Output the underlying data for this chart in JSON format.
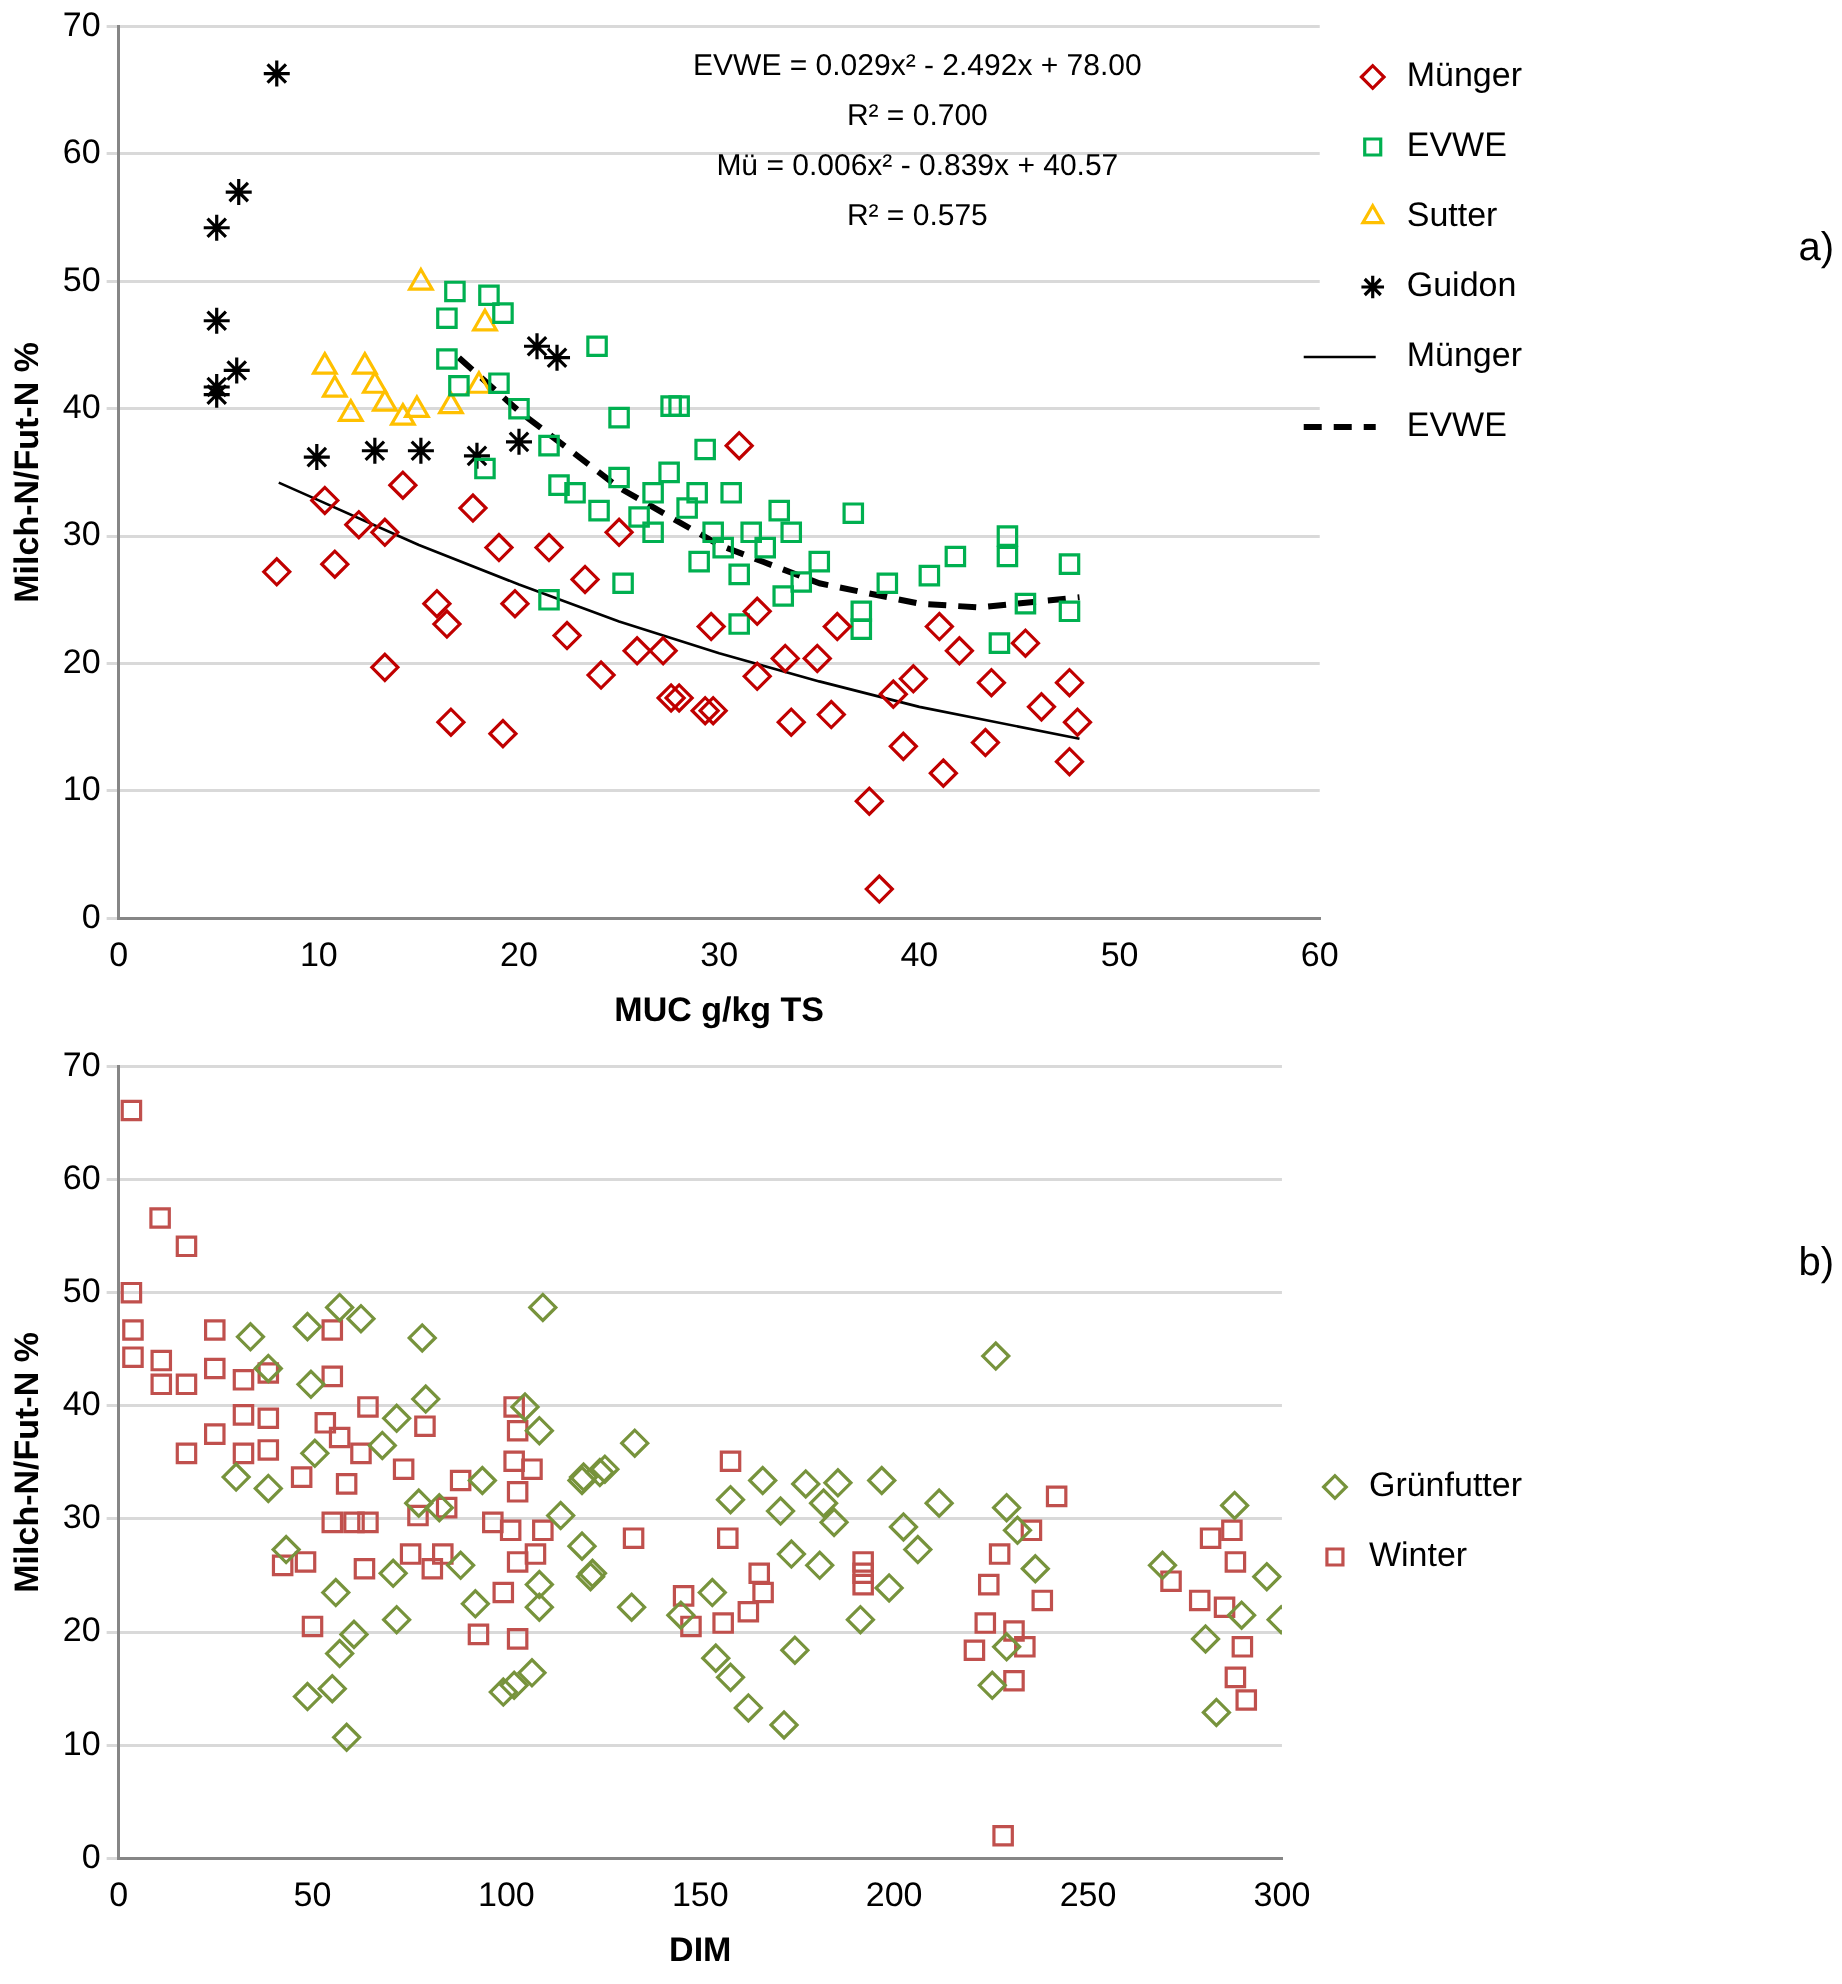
{
  "chart_data": [
    {
      "type": "scatter",
      "xlabel": "MUC g/kg TS",
      "ylabel": "Milch-N/Fut-N %",
      "xlim": [
        0,
        60
      ],
      "xticks": [
        0,
        10,
        20,
        30,
        40,
        50,
        60
      ],
      "ylim": [
        0,
        70
      ],
      "yticks": [
        0,
        10,
        20,
        30,
        40,
        50,
        60,
        70
      ],
      "grid": "y",
      "legend": "right",
      "annotations": [
        "EVWE = 0.029x² - 2.492x + 78.00",
        "R² = 0.700",
        "Mü = 0.006x² - 0.839x + 40.57",
        "R² = 0.575",
        "a)"
      ],
      "series": [
        {
          "name": "Münger",
          "marker": "diamond",
          "color": "#c00000",
          "x": [
            7.9,
            10.8,
            13.3,
            16.6,
            19.2,
            15.9,
            16.4,
            19.0,
            12.0,
            14.2,
            17.7,
            21.5,
            22.4,
            24.1,
            27.6,
            29.7,
            25.9,
            31.0,
            10.3,
            13.3,
            19.8,
            23.3,
            25.0,
            27.2,
            28.0,
            29.3,
            33.6,
            35.6,
            37.5,
            38.0,
            39.2,
            41.2,
            41.0,
            42.0,
            45.3,
            43.6,
            43.3,
            47.5,
            47.5,
            47.9,
            46.1,
            39.7,
            38.7,
            34.9,
            33.3,
            31.9,
            29.6,
            35.9,
            31.9
          ],
          "values": [
            27.2,
            27.8,
            19.7,
            15.4,
            14.5,
            24.7,
            23.1,
            29.1,
            30.9,
            34.0,
            32.2,
            29.1,
            22.2,
            19.1,
            17.3,
            16.3,
            21.0,
            37.1,
            32.8,
            30.3,
            24.7,
            26.6,
            30.3,
            21.0,
            17.3,
            16.3,
            15.4,
            16.0,
            9.2,
            2.3,
            13.5,
            11.4,
            22.9,
            21.0,
            21.6,
            18.5,
            13.8,
            18.5,
            12.3,
            15.4,
            16.6,
            18.8,
            17.6,
            20.4,
            20.4,
            24.1,
            22.9,
            22.9,
            19.0
          ]
        },
        {
          "name": "EVWE",
          "marker": "square",
          "color": "#00b050",
          "x": [
            16.8,
            18.5,
            16.4,
            19.2,
            23.9,
            27.6,
            25.0,
            21.5,
            16.4,
            17.0,
            18.3,
            22.8,
            25.0,
            26.7,
            28.9,
            30.2,
            21.5,
            25.2,
            31.0,
            28.0,
            29.3,
            30.6,
            36.7,
            44.4,
            44.4,
            47.5,
            47.5,
            45.3,
            41.8,
            40.5,
            44.0,
            38.4,
            37.1,
            37.1,
            33.2,
            34.1,
            33.6,
            31.6,
            26.7,
            28.4,
            29.7,
            32.3,
            26.0,
            27.5,
            24.0,
            29.0,
            31.0,
            35.0,
            33.0,
            22.0,
            19.0,
            20.0
          ],
          "values": [
            49.2,
            48.9,
            47.1,
            47.5,
            44.9,
            40.2,
            39.3,
            37.1,
            43.9,
            41.8,
            35.3,
            33.4,
            34.6,
            30.3,
            33.4,
            29.1,
            25.0,
            26.3,
            23.1,
            40.2,
            36.8,
            33.4,
            31.8,
            30.0,
            28.4,
            27.8,
            24.1,
            24.7,
            28.4,
            26.9,
            21.6,
            26.3,
            24.1,
            22.7,
            25.3,
            26.4,
            30.3,
            30.3,
            33.4,
            32.2,
            30.3,
            29.1,
            31.5,
            35.0,
            32.0,
            28.0,
            27.0,
            28.0,
            32.0,
            34.0,
            42.0,
            40.0
          ]
        },
        {
          "name": "Sutter",
          "marker": "triangle",
          "color": "#ffc000",
          "x": [
            15.1,
            18.3,
            10.3,
            12.3,
            10.8,
            12.8,
            11.6,
            14.2,
            16.6,
            18.0,
            14.9,
            13.3
          ],
          "values": [
            49.9,
            46.7,
            43.3,
            43.3,
            41.5,
            41.8,
            39.6,
            39.3,
            40.2,
            41.8,
            39.9,
            40.4
          ]
        },
        {
          "name": "Guidon",
          "marker": "cross",
          "color": "#000000",
          "x": [
            7.9,
            6.0,
            4.9,
            4.9,
            5.9,
            4.9,
            4.9,
            9.9,
            12.8,
            15.1,
            17.9,
            20.0,
            20.9,
            21.9
          ],
          "values": [
            66.3,
            57.0,
            54.2,
            46.9,
            43.0,
            41.7,
            41.1,
            36.2,
            36.7,
            36.7,
            36.3,
            37.4,
            44.9,
            44.0
          ]
        },
        {
          "name": "Münger",
          "type": "line",
          "marker": "none",
          "line_style": "solid",
          "color": "#000000",
          "x": [
            8,
            10,
            15,
            20,
            25,
            30,
            35,
            40,
            48
          ],
          "values": [
            34.2,
            32.8,
            29.3,
            26.2,
            23.3,
            20.8,
            18.6,
            16.6,
            14.1
          ]
        },
        {
          "name": "EVWE",
          "type": "line",
          "marker": "none",
          "line_style": "dashed",
          "color": "#000000",
          "x": [
            17,
            20,
            25,
            30,
            35,
            40,
            43,
            48
          ],
          "values": [
            44.0,
            39.8,
            33.8,
            29.3,
            26.3,
            24.7,
            24.4,
            25.2
          ]
        }
      ]
    },
    {
      "type": "scatter",
      "xlabel": "DIM",
      "ylabel": "Milch-N/Fut-N %",
      "xlim": [
        0,
        300
      ],
      "xticks": [
        0,
        50,
        100,
        150,
        200,
        250,
        300
      ],
      "ylim": [
        0,
        70
      ],
      "yticks": [
        0,
        10,
        20,
        30,
        40,
        50,
        60,
        70
      ],
      "grid": "y",
      "legend": "right",
      "annotations": [
        "b)"
      ],
      "series": [
        {
          "name": "Grünfutter",
          "marker": "diamond",
          "color": "#77933c",
          "x": [
            34,
            38.6,
            38.6,
            30.3,
            43.2,
            48.7,
            49.6,
            50.6,
            48.7,
            55.1,
            58.8,
            57,
            62.5,
            56,
            57,
            60.7,
            68,
            71.7,
            71.7,
            70.8,
            78.3,
            79.2,
            77.4,
            82.7,
            88.2,
            93.8,
            92,
            99.2,
            102,
            106.6,
            109.4,
            104.8,
            108.5,
            108.5,
            108.5,
            114.0,
            119.5,
            119.5,
            122.2,
            124.1,
            133.1,
            132.3,
            119.9,
            125.4,
            121.7,
            145,
            157.8,
            166.1,
            153.1,
            154,
            157.8,
            162.4,
            171.6,
            174.4,
            170.7,
            173.5,
            177.2,
            181.8,
            185.5,
            184.5,
            180.8,
            191.3,
            196.8,
            198.7,
            202.4,
            206.1,
            211.6,
            226.2,
            229.0,
            231.8,
            236.4,
            225.3,
            229.0,
            269.2,
            280.3,
            283.1,
            287.8,
            296.1,
            299.8,
            289.6
          ],
          "values": [
            46.1,
            43.3,
            32.7,
            33.7,
            27.3,
            47.0,
            41.9,
            35.8,
            14.3,
            15.0,
            10.7,
            48.7,
            47.7,
            23.5,
            18.1,
            19.8,
            36.5,
            38.9,
            21.1,
            25.2,
            46.0,
            40.6,
            31.4,
            31.0,
            25.9,
            33.4,
            22.5,
            14.7,
            15.3,
            16.4,
            48.7,
            39.9,
            37.8,
            24.2,
            22.2,
            30.3,
            33.4,
            27.6,
            25.2,
            34.1,
            36.7,
            22.2,
            33.7,
            34.4,
            24.9,
            21.5,
            31.7,
            33.4,
            23.5,
            17.7,
            16.0,
            13.3,
            11.8,
            18.4,
            30.7,
            26.9,
            33.1,
            31.4,
            33.2,
            29.7,
            25.9,
            21.1,
            33.4,
            23.9,
            29.3,
            27.3,
            31.4,
            44.4,
            31.0,
            29.0,
            25.6,
            15.3,
            18.7,
            25.9,
            19.4,
            12.9,
            31.2,
            24.9,
            21.1,
            21.5
          ]
        },
        {
          "name": "Winter",
          "marker": "square",
          "color": "#c0504d",
          "x": [
            3.3,
            10.7,
            17.5,
            3.3,
            3.7,
            3.7,
            11,
            11,
            17.5,
            17.5,
            24.8,
            24.8,
            24.8,
            32.2,
            32.2,
            32.2,
            38.6,
            38.6,
            38.6,
            42.3,
            47.2,
            48.2,
            50.0,
            55.1,
            55.1,
            53.3,
            57,
            58.8,
            55.1,
            60.7,
            64.3,
            62.5,
            64.3,
            63.4,
            73.5,
            75.3,
            79,
            77.2,
            80.9,
            84.6,
            83.6,
            88.2,
            92.8,
            96.5,
            99.2,
            102,
            102.9,
            102,
            102.9,
            101.1,
            102.9,
            102.9,
            106.6,
            107.5,
            109.4,
            157.8,
            157.1,
            145.7,
            147.6,
            155.9,
            162.4,
            165.2,
            166.2,
            192,
            192,
            192,
            132.8,
            241.9,
            235.4,
            227.2,
            224.4,
            238.2,
            223.5,
            220.7,
            230.9,
            233.7,
            230.9,
            228.1,
            271.4,
            278.8,
            281.6,
            287.1,
            288,
            285.2,
            289.8,
            288,
            290.8
          ],
          "values": [
            66.1,
            56.6,
            54.1,
            50.0,
            46.7,
            44.3,
            44.0,
            41.9,
            41.9,
            35.8,
            46.7,
            43.3,
            37.5,
            42.3,
            39.2,
            35.8,
            42.9,
            38.9,
            36.1,
            25.9,
            33.7,
            26.2,
            20.5,
            46.7,
            42.6,
            38.5,
            37.2,
            33.1,
            29.7,
            29.7,
            39.9,
            35.8,
            29.7,
            25.6,
            34.4,
            26.9,
            38.2,
            30.3,
            25.6,
            31.0,
            26.9,
            33.4,
            19.8,
            29.7,
            23.5,
            39.9,
            37.8,
            35.1,
            32.4,
            29.0,
            26.2,
            19.4,
            34.4,
            26.9,
            29.0,
            35.1,
            28.3,
            23.2,
            20.5,
            20.8,
            21.8,
            25.2,
            23.5,
            26.2,
            25.2,
            24.2,
            28.3,
            32.0,
            29.0,
            26.9,
            24.2,
            22.8,
            20.8,
            18.4,
            20.1,
            18.7,
            15.7,
            2.0,
            24.5,
            22.8,
            28.3,
            29.0,
            26.2,
            22.2,
            18.7,
            16.0,
            14.0
          ]
        }
      ]
    }
  ]
}
